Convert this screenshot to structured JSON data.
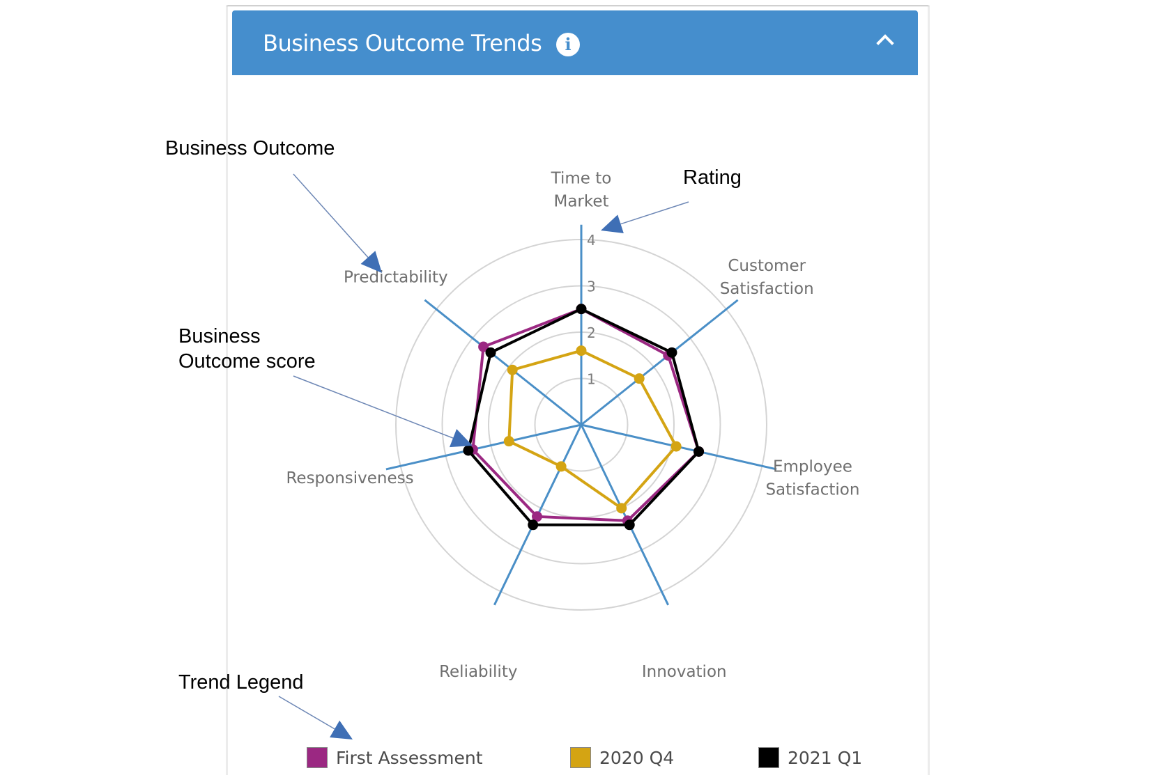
{
  "header": {
    "title": "Business Outcome Trends",
    "info_glyph": "i"
  },
  "annotations": {
    "business_outcome": "Business Outcome",
    "rating": "Rating",
    "score_line1": "Business",
    "score_line2": "Outcome score",
    "trend_legend": "Trend Legend"
  },
  "chart_data": {
    "type": "radar",
    "title": "",
    "axes": [
      [
        "Time to",
        "Market"
      ],
      [
        "Customer",
        "Satisfaction"
      ],
      [
        "Employee",
        "Satisfaction"
      ],
      [
        "Innovation"
      ],
      [
        "Reliability"
      ],
      [
        "Responsiveness"
      ],
      [
        "Predictability"
      ]
    ],
    "rlim": [
      0,
      4
    ],
    "ticks": [
      "1",
      "2",
      "3",
      "4"
    ],
    "series": [
      {
        "name": "First Assessment",
        "color": "#9b2882",
        "values": [
          2.5,
          2.4,
          2.6,
          2.3,
          2.2,
          2.4,
          2.7
        ]
      },
      {
        "name": "2020 Q4",
        "color": "#d4a413",
        "values": [
          1.6,
          1.6,
          2.1,
          2.0,
          1.0,
          1.6,
          1.9
        ]
      },
      {
        "name": "2021 Q1",
        "color": "#000000",
        "values": [
          2.5,
          2.5,
          2.6,
          2.4,
          2.4,
          2.5,
          2.5
        ]
      }
    ],
    "grid": true,
    "legend_position": "bottom"
  },
  "colors": {
    "header_bg": "#458ecd",
    "spoke": "#4a8fc7",
    "grid": "#d4d4d4",
    "arrow": "#3f6fb5"
  }
}
